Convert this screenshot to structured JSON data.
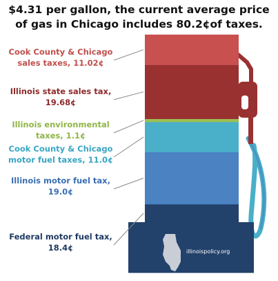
{
  "headline": {
    "price": "$4.31",
    "text_1": " per gallon, the current average price",
    "text_2": "of gas in Chicago includes ",
    "tax_total": "80.2¢",
    "text_3": "of taxes."
  },
  "watermark": "illinoispolicy.org",
  "colors": {
    "red_light": "#c8504f",
    "red_dark": "#993131",
    "green": "#9dbf52",
    "teal": "#4aafc8",
    "blue": "#4a82c2",
    "navy": "#22416b"
  },
  "chart_data": {
    "type": "bar",
    "title": "At $4.31 per gallon, the current average price of gas in Chicago includes 80.2¢ of taxes.",
    "unit": "¢",
    "stacked": true,
    "categories": [
      "Federal motor fuel tax,",
      "Illinois motor fuel tax,",
      "Cook County & Chicago motor fuel taxes,",
      "Illinois environmental taxes,",
      "Illinois state sales tax,",
      "Cook County & Chicago sales taxes,"
    ],
    "values": [
      18.4,
      19.0,
      11.0,
      1.1,
      19.68,
      11.02
    ],
    "labels": [
      {
        "line1": "Federal motor fuel tax,",
        "line2": "18.4¢",
        "color": "#1f3a63"
      },
      {
        "line1": "Illinois motor fuel tax,",
        "line2": "19.0¢",
        "color": "#3a6fb3"
      },
      {
        "line1": "Cook County & Chicago",
        "line2": "motor fuel taxes, 11.0¢",
        "color": "#3aa6c3"
      },
      {
        "line1": "Illinois environmental",
        "line2": "taxes, 1.1¢",
        "color": "#8fb547"
      },
      {
        "line1": "Illinois state sales tax,",
        "line2": "19.68¢",
        "color": "#8e2a2a"
      },
      {
        "line1": "Cook County & Chicago",
        "line2": "sales taxes, 11.02¢",
        "color": "#c0504d"
      }
    ]
  }
}
